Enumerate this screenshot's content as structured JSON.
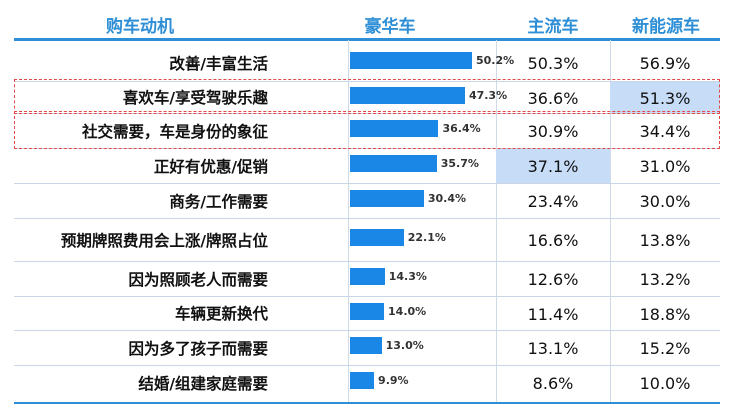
{
  "chart_data": {
    "type": "table",
    "columns": [
      "购车动机",
      "豪华车",
      "主流车",
      "新能源车"
    ],
    "rows": [
      {
        "label": "改善/丰富生活",
        "luxury": 50.2,
        "luxury_text": "50.2%",
        "mainstream": "50.3%",
        "nev": "56.9%"
      },
      {
        "label": "喜欢车/享受驾驶乐趣",
        "luxury": 47.3,
        "luxury_text": "47.3%",
        "mainstream": "36.6%",
        "nev": "51.3%"
      },
      {
        "label": "社交需要，车是身份的象征",
        "luxury": 36.4,
        "luxury_text": "36.4%",
        "mainstream": "30.9%",
        "nev": "34.4%"
      },
      {
        "label": "正好有优惠/促销",
        "luxury": 35.7,
        "luxury_text": "35.7%",
        "mainstream": "37.1%",
        "nev": "31.0%"
      },
      {
        "label": "商务/工作需要",
        "luxury": 30.4,
        "luxury_text": "30.4%",
        "mainstream": "23.4%",
        "nev": "30.0%"
      },
      {
        "label": "预期牌照费用会上涨/牌照占位",
        "luxury": 22.1,
        "luxury_text": "22.1%",
        "mainstream": "16.6%",
        "nev": "13.8%"
      },
      {
        "label": "因为照顾老人而需要",
        "luxury": 14.3,
        "luxury_text": "14.3%",
        "mainstream": "12.6%",
        "nev": "13.2%"
      },
      {
        "label": "车辆更新换代",
        "luxury": 14.0,
        "luxury_text": "14.0%",
        "mainstream": "11.4%",
        "nev": "18.8%"
      },
      {
        "label": "因为多了孩子而需要",
        "luxury": 13.0,
        "luxury_text": "13.0%",
        "mainstream": "13.1%",
        "nev": "15.2%"
      },
      {
        "label": "结婚/组建家庭需要",
        "luxury": 9.9,
        "luxury_text": "9.9%",
        "mainstream": "8.6%",
        "nev": "10.0%"
      }
    ],
    "highlighted_cells": [
      {
        "row": 1,
        "column": "新能源车"
      },
      {
        "row": 3,
        "column": "主流车"
      }
    ],
    "dashed_outline_rows": [
      1,
      2
    ],
    "bar_color": "#1a86e6",
    "header_color": "#2f8fd6",
    "highlight_color": "#c6dcf7",
    "outline_color": "#e24a4a"
  }
}
